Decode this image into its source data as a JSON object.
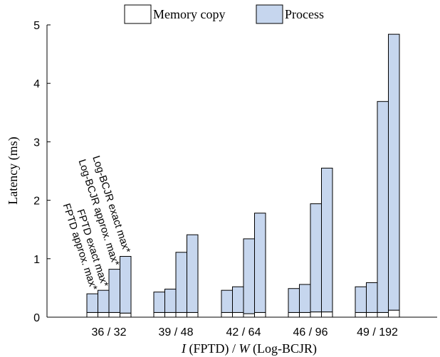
{
  "chart_data": {
    "type": "bar",
    "stacked": true,
    "categories": [
      "36 / 32",
      "39 / 48",
      "42 / 64",
      "46 / 96",
      "49 / 192"
    ],
    "bar_variants": [
      "FPTD approx. max*",
      "FPTD exact max*",
      "Log-BCJR approx. max*",
      "Log-BCJR exact max*"
    ],
    "series": [
      {
        "name": "Memory copy",
        "color": "#ffffff",
        "values": [
          [
            0.08,
            0.08,
            0.08,
            0.07
          ],
          [
            0.08,
            0.08,
            0.08,
            0.08
          ],
          [
            0.08,
            0.08,
            0.06,
            0.08
          ],
          [
            0.08,
            0.08,
            0.09,
            0.09
          ],
          [
            0.08,
            0.08,
            0.08,
            0.12
          ]
        ]
      },
      {
        "name": "Process",
        "color": "#c6d6ee",
        "values": [
          [
            0.32,
            0.38,
            0.74,
            0.97
          ],
          [
            0.35,
            0.4,
            1.03,
            1.33
          ],
          [
            0.38,
            0.44,
            1.28,
            1.7
          ],
          [
            0.41,
            0.48,
            1.85,
            2.46
          ],
          [
            0.44,
            0.51,
            3.61,
            4.72
          ]
        ]
      }
    ],
    "annotations": [
      "FPTD approx. max*",
      "FPTD exact max*",
      "Log-BCJR approx. max*",
      "Log-BCJR exact max*"
    ],
    "xlabel": {
      "part1_var": "I",
      "part1_rest": " (FPTD) / ",
      "part2_var": "W",
      "part2_rest": " (Log-BCJR)"
    },
    "ylabel": "Latency (ms)",
    "ylim": [
      0,
      5
    ],
    "yticks": [
      0,
      1,
      2,
      3,
      4,
      5
    ],
    "legend_position": "top",
    "grid": false
  }
}
